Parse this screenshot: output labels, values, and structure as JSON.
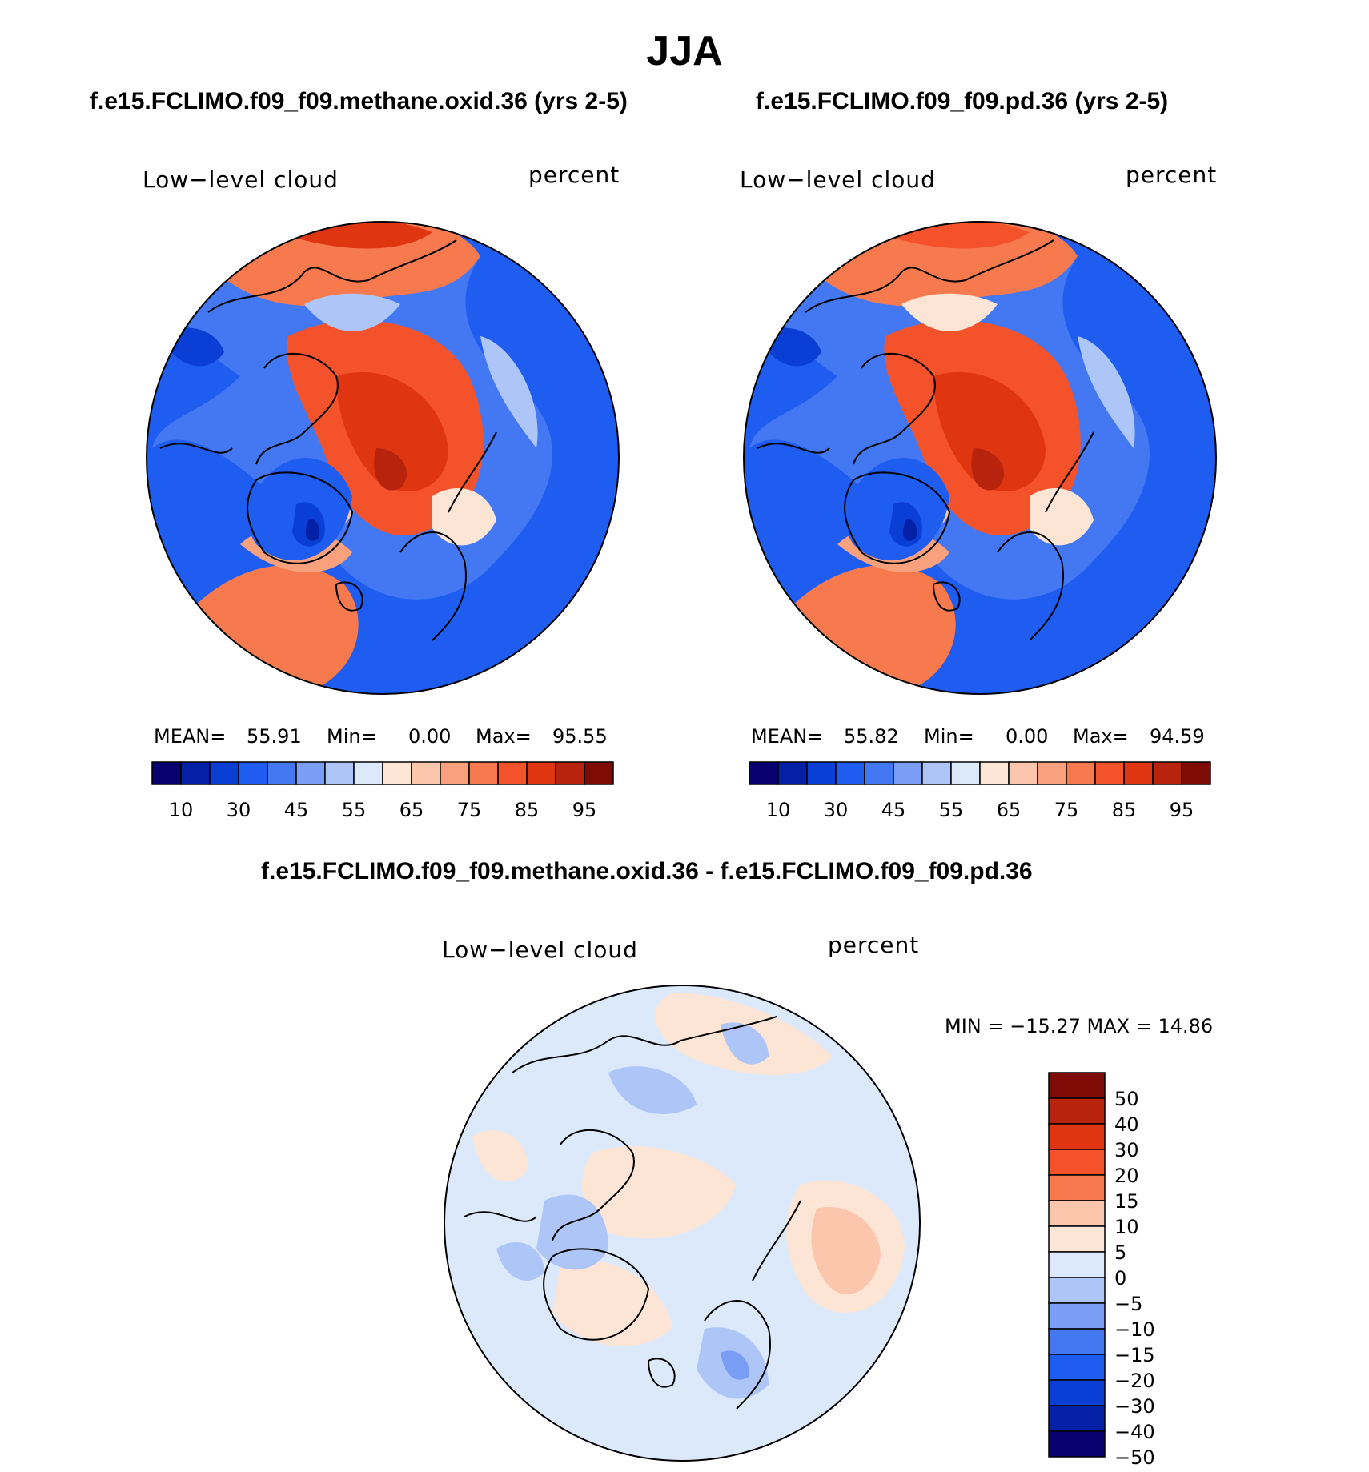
{
  "main_title": "JJA",
  "panels": [
    {
      "case_title": "f.e15.FCLIMO.f09_f09.methane.oxid.36 (yrs 2-5)",
      "variable": "Low−level cloud",
      "units": "percent",
      "mean_label": "MEAN=",
      "mean": "55.91",
      "min_label": "Min=",
      "min": "0.00",
      "max_label": "Max=",
      "max": "95.55"
    },
    {
      "case_title": "f.e15.FCLIMO.f09_f09.pd.36 (yrs 2-5)",
      "variable": "Low−level cloud",
      "units": "percent",
      "mean_label": "MEAN=",
      "mean": "55.82",
      "min_label": "Min=",
      "min": "0.00",
      "max_label": "Max=",
      "max": "94.59"
    }
  ],
  "diff": {
    "title": "f.e15.FCLIMO.f09_f09.methane.oxid.36 - f.e15.FCLIMO.f09_f09.pd.36",
    "variable": "Low−level cloud",
    "units": "percent",
    "minmax": "MIN = −15.27 MAX =   14.86"
  },
  "chart_data": [
    {
      "type": "heatmap",
      "title": "f.e15.FCLIMO.f09_f09.methane.oxid.36 (yrs 2-5)",
      "variable": "Low-level cloud",
      "units": "percent",
      "projection": "north polar stereographic",
      "mean": 55.91,
      "min": 0.0,
      "max": 95.55,
      "colorbar_levels": [
        5,
        10,
        20,
        30,
        40,
        45,
        50,
        55,
        60,
        65,
        70,
        75,
        80,
        85,
        90,
        95
      ],
      "colorbar_tick_labels": [
        "10",
        "30",
        "45",
        "55",
        "65",
        "75",
        "85",
        "95"
      ]
    },
    {
      "type": "heatmap",
      "title": "f.e15.FCLIMO.f09_f09.pd.36 (yrs 2-5)",
      "variable": "Low-level cloud",
      "units": "percent",
      "projection": "north polar stereographic",
      "mean": 55.82,
      "min": 0.0,
      "max": 94.59,
      "colorbar_levels": [
        5,
        10,
        20,
        30,
        40,
        45,
        50,
        55,
        60,
        65,
        70,
        75,
        80,
        85,
        90,
        95
      ],
      "colorbar_tick_labels": [
        "10",
        "30",
        "45",
        "55",
        "65",
        "75",
        "85",
        "95"
      ]
    },
    {
      "type": "heatmap",
      "title": "f.e15.FCLIMO.f09_f09.methane.oxid.36 - f.e15.FCLIMO.f09_f09.pd.36",
      "variable": "Low-level cloud",
      "units": "percent",
      "projection": "north polar stereographic",
      "min": -15.27,
      "max": 14.86,
      "colorbar_tick_labels": [
        "50",
        "40",
        "30",
        "20",
        "15",
        "10",
        "5",
        "0",
        "−5",
        "−10",
        "−15",
        "−20",
        "−30",
        "−40",
        "−50"
      ]
    }
  ],
  "colors": {
    "seq_palette": [
      "#08006e",
      "#0320a6",
      "#0a3fd6",
      "#1f5cf0",
      "#4478f2",
      "#7a9ef5",
      "#aec5f7",
      "#dce9fa",
      "#fde5d6",
      "#fbc6ab",
      "#f9a07c",
      "#f77a4f",
      "#f3522a",
      "#df3510",
      "#b8230d",
      "#7f0b06"
    ],
    "div_palette": [
      "#7f0b06",
      "#b8230d",
      "#df3510",
      "#f3522a",
      "#f77a4f",
      "#fbc6ab",
      "#fde5d6",
      "#dce9fa",
      "#aec5f7",
      "#7a9ef5",
      "#4478f2",
      "#1f5cf0",
      "#0a3fd6",
      "#0320a6",
      "#08006e"
    ]
  }
}
